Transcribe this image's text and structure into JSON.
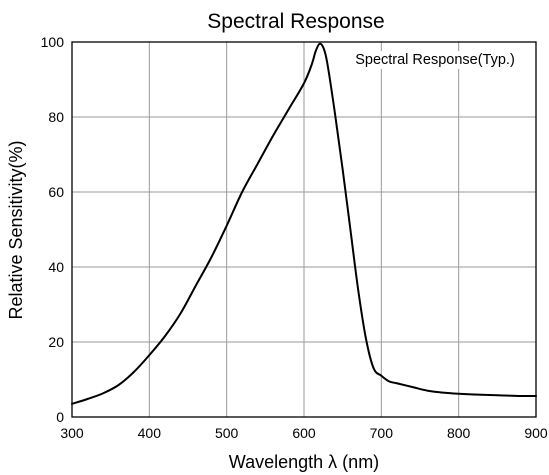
{
  "chart_data": {
    "type": "line",
    "title": "Spectral Response",
    "xlabel": "Wavelength λ (nm)",
    "ylabel": "Relative Sensitivity(%)",
    "annotation": "Spectral Response(Typ.)",
    "xlim": [
      300,
      900
    ],
    "ylim": [
      0,
      100
    ],
    "x_ticks": [
      300,
      400,
      500,
      600,
      700,
      800,
      900
    ],
    "y_ticks": [
      0,
      20,
      40,
      60,
      80,
      100
    ],
    "grid": true,
    "series": [
      {
        "x": [
          300,
          320,
          340,
          360,
          380,
          400,
          420,
          440,
          460,
          480,
          500,
          520,
          540,
          560,
          580,
          600,
          610,
          615,
          620,
          625,
          630,
          640,
          650,
          660,
          670,
          680,
          690,
          700,
          710,
          720,
          740,
          760,
          780,
          800,
          820,
          850,
          880,
          900
        ],
        "values": [
          3.5,
          4.8,
          6.3,
          8.5,
          12.0,
          16.5,
          21.5,
          27.5,
          35.0,
          42.5,
          51.0,
          60.0,
          67.5,
          75.0,
          82.0,
          89.0,
          94.0,
          97.5,
          99.5,
          98.5,
          94.5,
          81.0,
          66.0,
          50.0,
          34.0,
          21.0,
          13.0,
          11.0,
          9.5,
          9.0,
          8.0,
          7.0,
          6.5,
          6.2,
          6.0,
          5.8,
          5.6,
          5.6
        ]
      }
    ]
  }
}
